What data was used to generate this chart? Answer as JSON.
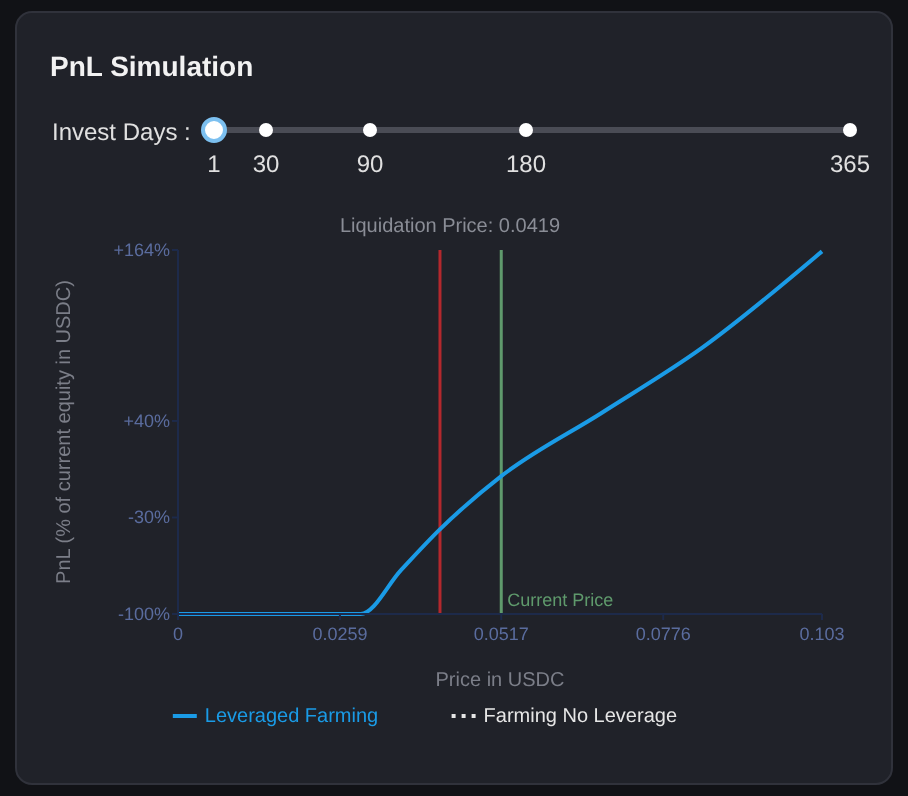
{
  "chart_data": {
    "type": "line",
    "title": "PnL Simulation",
    "xlabel": "Price in USDC",
    "ylabel": "PnL (% of current equity in USDC)",
    "annotations": [
      "Invest Days :",
      "1",
      "30",
      "90",
      "180",
      "365"
    ],
    "x": [
      0,
      0.0292,
      0.0357,
      0.0418,
      0.0517,
      0.0678,
      0.0838,
      0.103
    ],
    "series": [
      {
        "name": "Leveraged Farming",
        "color": "#1a9be6",
        "values": [
          -100,
          -100,
          -68,
          -39,
          0,
          46,
          93,
          163
        ]
      },
      {
        "name": "Farming No Leverage",
        "color": "#e6e6e6",
        "line_style": "dotted",
        "values": [
          null,
          null,
          null,
          null,
          null,
          null,
          null,
          null
        ]
      }
    ],
    "xlim": [
      0,
      0.103
    ],
    "xticks": [
      0,
      0.0259,
      0.0517,
      0.0776,
      0.103
    ],
    "ylim": [
      -100,
      164
    ],
    "yticks": [
      {
        "value": -100,
        "label": "-100%"
      },
      {
        "value": -30,
        "label": "-30%"
      },
      {
        "value": 40,
        "label": "+40%"
      },
      {
        "value": 164,
        "label": "+164%"
      }
    ],
    "ref_lines": [
      {
        "axis": "x",
        "value": 0.0419,
        "label": "Liquidation Price: 0.0419",
        "color": "#b3282d"
      },
      {
        "axis": "x",
        "value": 0.0517,
        "label": "Current Price",
        "color": "#5f9a6c"
      }
    ],
    "grid": false,
    "legend": "bottom"
  }
}
